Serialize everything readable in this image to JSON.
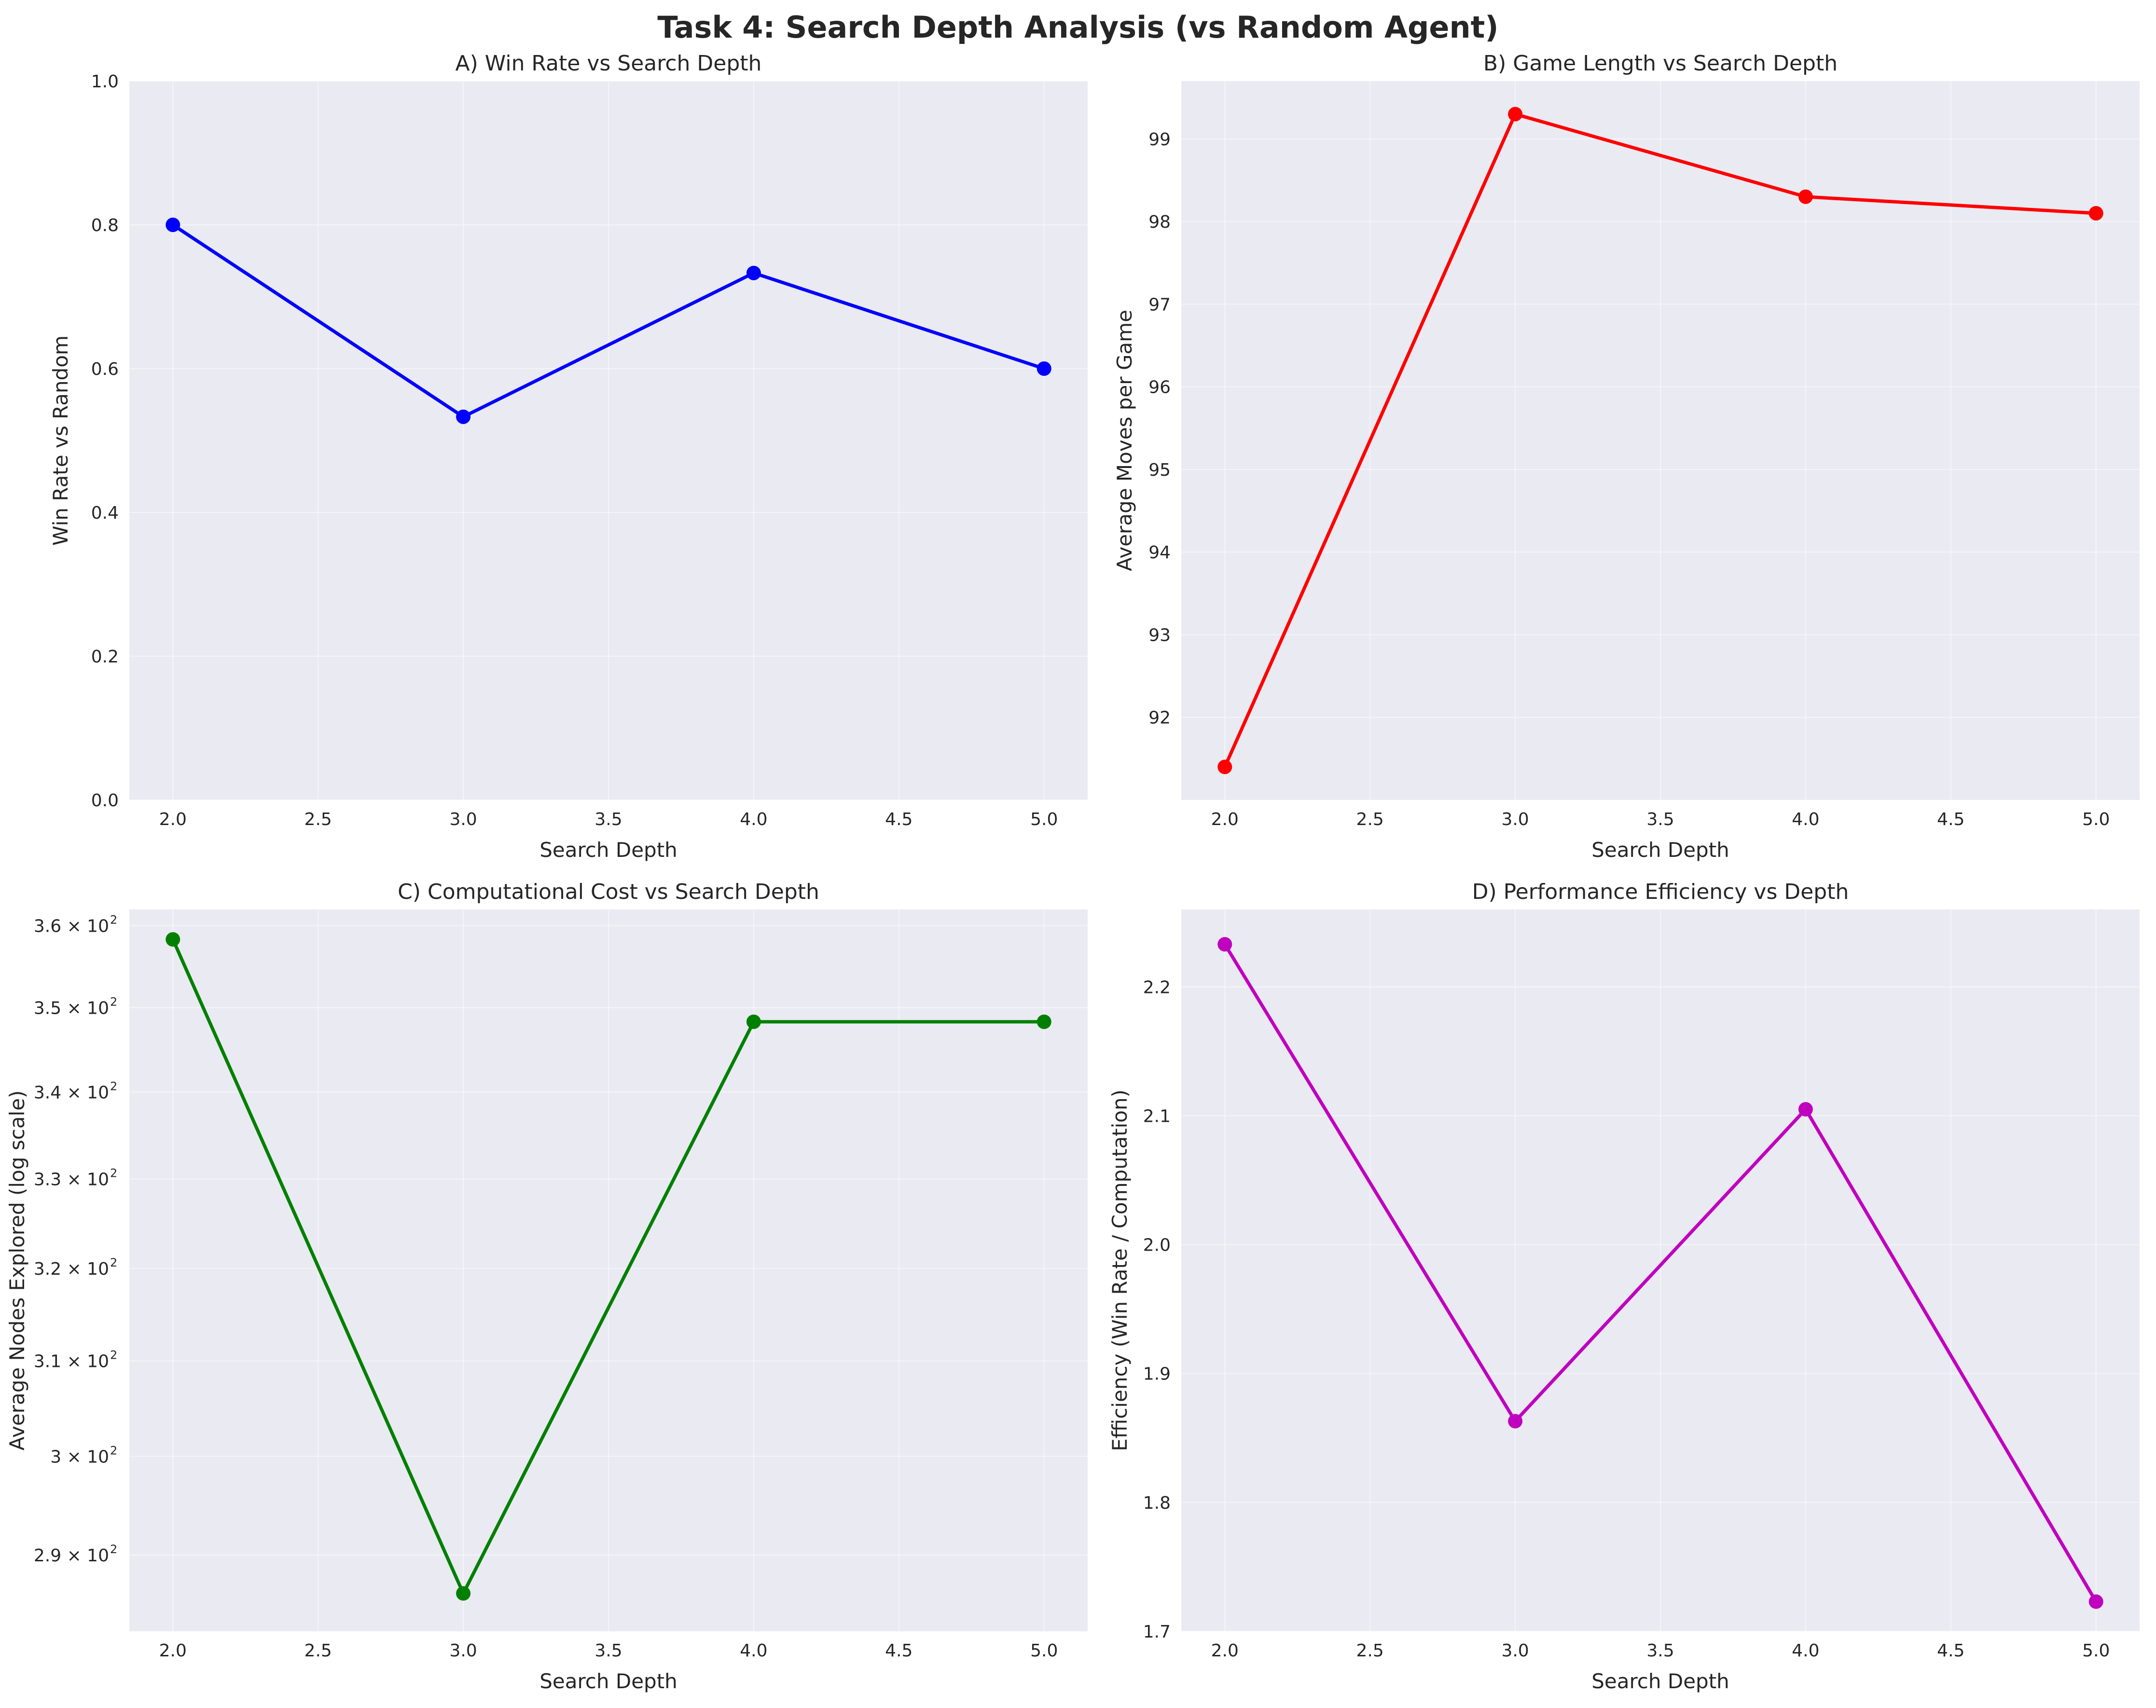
{
  "figure": {
    "title": "Task 4: Search Depth Analysis (vs Random Agent)"
  },
  "chart_data": [
    {
      "id": "A",
      "type": "line",
      "title": "A) Win Rate vs Search Depth",
      "xlabel": "Search Depth",
      "ylabel": "Win Rate vs Random",
      "x": [
        2,
        3,
        4,
        5
      ],
      "y": [
        0.8,
        0.533,
        0.733,
        0.6
      ],
      "xlim": [
        1.85,
        5.15
      ],
      "ylim": [
        0,
        1.0
      ],
      "xticks": [
        2.0,
        2.5,
        3.0,
        3.5,
        4.0,
        4.5,
        5.0
      ],
      "xtick_labels": [
        "2.0",
        "2.5",
        "3.0",
        "3.5",
        "4.0",
        "4.5",
        "5.0"
      ],
      "yticks": [
        0,
        0.2,
        0.4,
        0.6,
        0.8,
        1.0
      ],
      "ytick_labels": [
        "0.0",
        "0.2",
        "0.4",
        "0.6",
        "0.8",
        "1.0"
      ],
      "color": "#0000ff",
      "grid": true,
      "yscale": "linear"
    },
    {
      "id": "B",
      "type": "line",
      "title": "B) Game Length vs Search Depth",
      "xlabel": "Search Depth",
      "ylabel": "Average Moves per Game",
      "x": [
        2,
        3,
        4,
        5
      ],
      "y": [
        91.4,
        99.3,
        98.3,
        98.1
      ],
      "xlim": [
        1.85,
        5.15
      ],
      "ylim": [
        91.0,
        99.7
      ],
      "xticks": [
        2.0,
        2.5,
        3.0,
        3.5,
        4.0,
        4.5,
        5.0
      ],
      "xtick_labels": [
        "2.0",
        "2.5",
        "3.0",
        "3.5",
        "4.0",
        "4.5",
        "5.0"
      ],
      "yticks": [
        92,
        93,
        94,
        95,
        96,
        97,
        98,
        99
      ],
      "ytick_labels": [
        "92",
        "93",
        "94",
        "95",
        "96",
        "97",
        "98",
        "99"
      ],
      "color": "#ff0000",
      "grid": true,
      "yscale": "linear"
    },
    {
      "id": "C",
      "type": "line",
      "title": "C) Computational Cost vs Search Depth",
      "xlabel": "Search Depth",
      "ylabel": "Average Nodes Explored (log scale)",
      "x": [
        2,
        3,
        4,
        5
      ],
      "y": [
        358.3,
        286.2,
        348.3,
        348.3
      ],
      "xlim": [
        1.85,
        5.15
      ],
      "ylim": [
        282.5,
        362.0
      ],
      "xticks": [
        2.0,
        2.5,
        3.0,
        3.5,
        4.0,
        4.5,
        5.0
      ],
      "xtick_labels": [
        "2.0",
        "2.5",
        "3.0",
        "3.5",
        "4.0",
        "4.5",
        "5.0"
      ],
      "yticks": [
        290,
        300,
        310,
        320,
        330,
        340,
        350,
        360
      ],
      "ytick_labels": [
        "2.9 × 10",
        "3 × 10",
        "3.1 × 10",
        "3.2 × 10",
        "3.3 × 10",
        "3.4 × 10",
        "3.5 × 10",
        "3.6 × 10"
      ],
      "ytick_exponent": "2",
      "color": "#008000",
      "grid": true,
      "yscale": "log"
    },
    {
      "id": "D",
      "type": "line",
      "title": "D) Performance Efficiency vs Depth",
      "xlabel": "Search Depth",
      "ylabel": "Efficiency (Win Rate / Computation)",
      "x": [
        2,
        3,
        4,
        5
      ],
      "y": [
        2.233,
        1.863,
        2.105,
        1.723
      ],
      "xlim": [
        1.85,
        5.15
      ],
      "ylim": [
        1.7,
        2.26
      ],
      "xticks": [
        2.0,
        2.5,
        3.0,
        3.5,
        4.0,
        4.5,
        5.0
      ],
      "xtick_labels": [
        "2.0",
        "2.5",
        "3.0",
        "3.5",
        "4.0",
        "4.5",
        "5.0"
      ],
      "yticks": [
        1.7,
        1.8,
        1.9,
        2.0,
        2.1,
        2.2
      ],
      "ytick_labels": [
        "1.7",
        "1.8",
        "1.9",
        "2.0",
        "2.1",
        "2.2"
      ],
      "color": "#bf00bf",
      "grid": true,
      "yscale": "linear"
    }
  ]
}
